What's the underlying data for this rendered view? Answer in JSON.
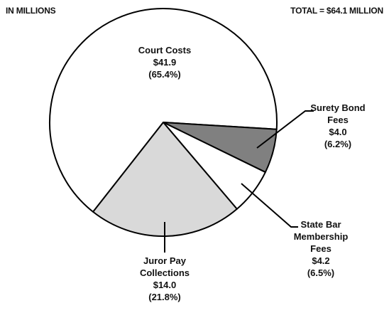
{
  "chart_data": {
    "type": "pie",
    "subtitle": "IN MILLIONS",
    "total_label": "TOTAL = $64.1 MILLION",
    "categories": [
      "Court Costs",
      "Surety Bond Fees",
      "State Bar Membership Fees",
      "Juror Pay Collections"
    ],
    "values": [
      41.9,
      4.0,
      4.2,
      14.0
    ],
    "value_labels": [
      "$41.9",
      "$4.0",
      "$4.2",
      "$14.0"
    ],
    "percents": [
      65.4,
      6.2,
      6.5,
      21.8
    ],
    "percent_labels": [
      "(65.4%)",
      "(6.2%)",
      "(6.5%)",
      "(21.8%)"
    ],
    "colors": [
      "#ffffff",
      "#808080",
      "#ffffff",
      "#d9d9d9"
    ]
  }
}
